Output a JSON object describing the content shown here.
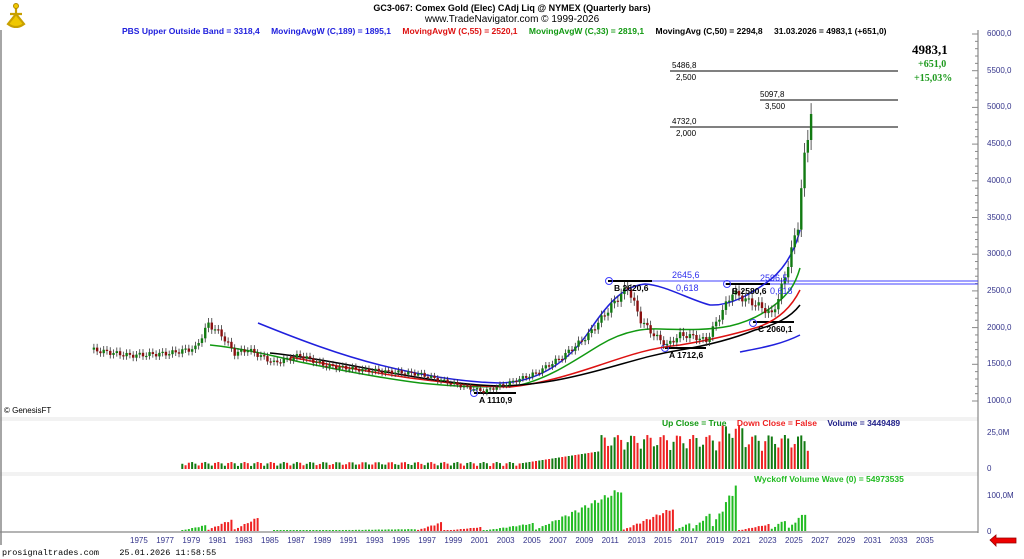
{
  "header": {
    "title": "GC3-067:  Comex Gold (Elec) CAdj Liq @ NYMEX  (Quarterly bars)",
    "subtitle": "www.TradeNavigator.com © 1999-2026",
    "logo": "sextant-icon"
  },
  "legend": {
    "pbs": {
      "text": "PBS Upper Outside Band = 3318,4",
      "color": "#2020dd"
    },
    "ma189": {
      "text": "MovingAvgW (C,189) = 1895,1",
      "color": "#2020dd"
    },
    "ma55": {
      "text": "MovingAvgW (C,55) = 2520,1",
      "color": "#dd1111"
    },
    "ma33": {
      "text": "MovingAvgW (C,33) = 2819,1",
      "color": "#119911"
    },
    "ma50": {
      "text": "MovingAvg (C,50) = 2294,8",
      "color": "#000000"
    },
    "last": {
      "text": "31.03.2026 = 4983,1 (+651,0)",
      "color": "#000000"
    }
  },
  "last_quote": {
    "price": "4983,1",
    "change": "+651,0",
    "percent": "+15,03%"
  },
  "copyright": "© GenesisFT",
  "footer": {
    "site": "prosignaltrades.com",
    "timestamp": "25.01.2026 11:58:55"
  },
  "price_axis": [
    "6000,0",
    "5500,0",
    "5000,0",
    "4500,0",
    "4000,0",
    "3500,0",
    "3000,0",
    "2500,0",
    "2000,0",
    "1500,0",
    "1000,0"
  ],
  "volume_axis": [
    "25,0M",
    "0"
  ],
  "wyckoff_axis": [
    "100,0M",
    "0"
  ],
  "x_axis": [
    "1975",
    "1977",
    "1979",
    "1981",
    "1983",
    "1985",
    "1987",
    "1989",
    "1991",
    "1993",
    "1995",
    "1997",
    "1999",
    "2001",
    "2003",
    "2005",
    "2007",
    "2009",
    "2011",
    "2013",
    "2015",
    "2017",
    "2019",
    "2021",
    "2023",
    "2025",
    "2027",
    "2029",
    "2031",
    "2033",
    "2035"
  ],
  "fib_levels": [
    {
      "price": "5486,8",
      "ratio": "2,500"
    },
    {
      "price": "5097,8",
      "ratio": "3,500"
    },
    {
      "price": "4732,0",
      "ratio": "2,000"
    },
    {
      "price": "2645,6",
      "ratio": "0,618"
    },
    {
      "price": "2596,5",
      "ratio": "0,618"
    }
  ],
  "annotations": {
    "A1": "A 1110,9",
    "B1": "B 2620,6",
    "A2": "A 1712,6",
    "B2": "B 2580,6",
    "C": "C 2060,1"
  },
  "volume_legend": {
    "up": {
      "text": "Up Close = True",
      "color": "#119911"
    },
    "down": {
      "text": "Down Close = False",
      "color": "#ee2222"
    },
    "vol": {
      "text": "Volume = 3449489",
      "color": "#22228a"
    }
  },
  "wyckoff_legend": "Wyckoff Volume Wave (0) = 54973535",
  "chart_data": [
    {
      "type": "candlestick",
      "title": "GC3-067: Comex Gold (Elec) CAdj Liq @ NYMEX (Quarterly bars)",
      "ylabel": "Price",
      "ylim": [
        900,
        6100
      ],
      "x": [
        "1975",
        "1980",
        "1985",
        "1990",
        "1995",
        "2000",
        "2001",
        "2005",
        "2008",
        "2011",
        "2012",
        "2013",
        "2015",
        "2016",
        "2018",
        "2020",
        "2021",
        "2022",
        "2023",
        "2024",
        "2025",
        "2025Q4",
        "2026Q1"
      ],
      "close_approx": [
        1700,
        2050,
        1600,
        1450,
        1350,
        1180,
        1110,
        1300,
        1550,
        2400,
        2620,
        1950,
        1712,
        1850,
        1800,
        2500,
        2580,
        2350,
        2060,
        2600,
        3300,
        4600,
        4983
      ],
      "series_overlays": [
        {
          "name": "PBS Upper Outside Band",
          "last": 3318.4
        },
        {
          "name": "MovingAvgW (C,189)",
          "last": 1895.1
        },
        {
          "name": "MovingAvgW (C,55)",
          "last": 2520.1
        },
        {
          "name": "MovingAvgW (C,33)",
          "last": 2819.1
        },
        {
          "name": "MovingAvg (C,50)",
          "last": 2294.8
        }
      ],
      "fib_lines": [
        5486.8,
        5097.8,
        4732.0,
        2645.6,
        2596.5
      ],
      "pivots": [
        {
          "label": "A",
          "value": 1110.9
        },
        {
          "label": "B",
          "value": 2620.6
        },
        {
          "label": "A",
          "value": 1712.6
        },
        {
          "label": "B",
          "value": 2580.6
        },
        {
          "label": "C",
          "value": 2060.1
        }
      ],
      "last": {
        "date": "31.03.2026",
        "value": 4983.1,
        "change": 651.0,
        "percent": 15.03
      }
    },
    {
      "type": "bar",
      "title": "Volume",
      "ylim": [
        0,
        30000000
      ],
      "last": 3449489,
      "legend": [
        "Up Close = True",
        "Down Close = False"
      ]
    },
    {
      "type": "bar",
      "title": "Wyckoff Volume Wave (0)",
      "ylim": [
        0,
        140000000
      ],
      "last": 54973535
    }
  ]
}
